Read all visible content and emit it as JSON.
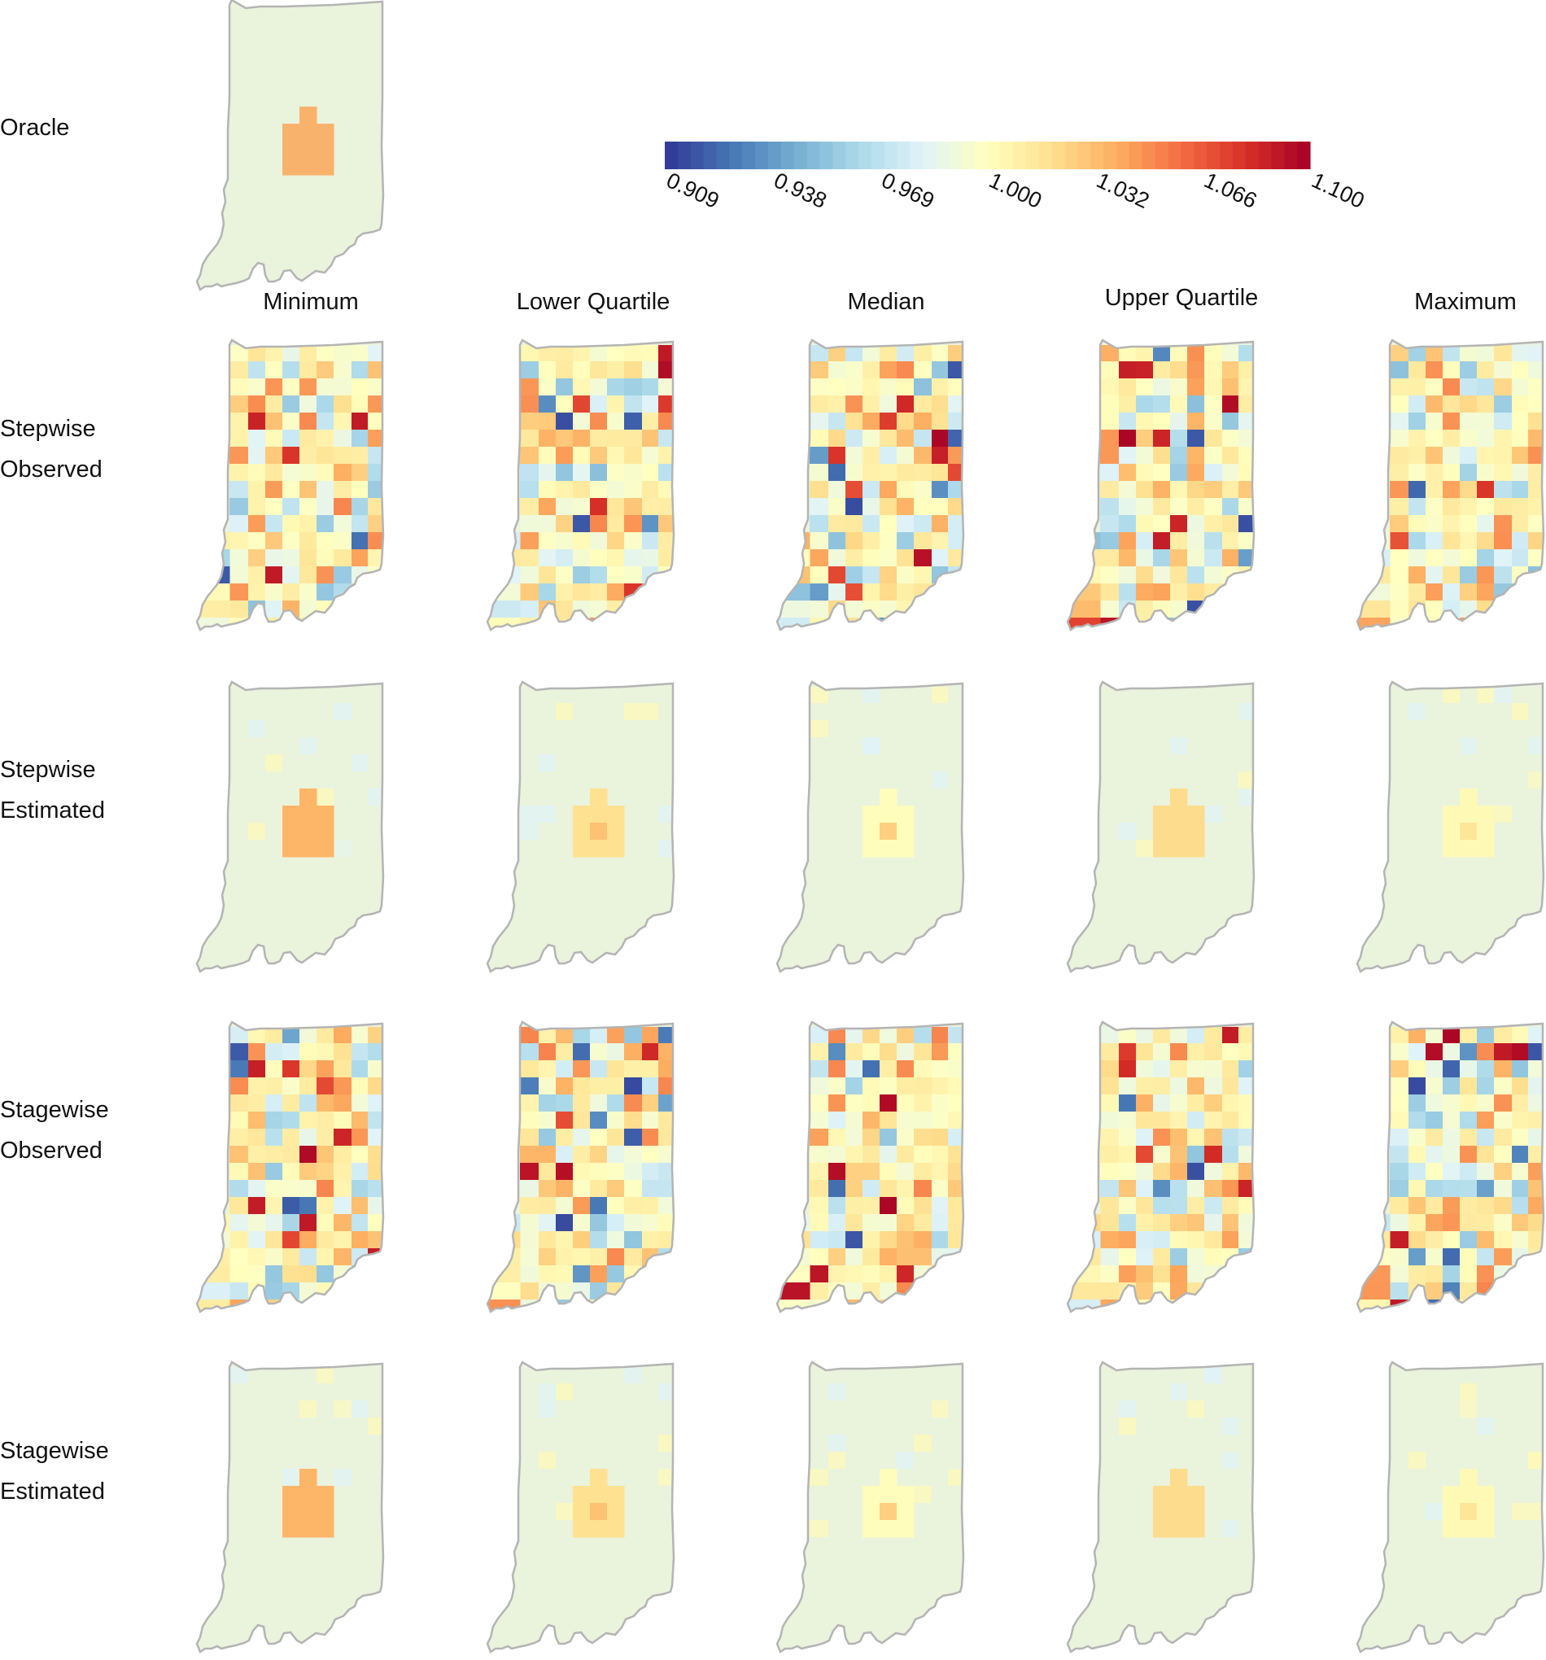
{
  "rows": [
    {
      "id": "oracle",
      "label_lines": [
        "Oracle"
      ]
    },
    {
      "id": "stepwise-observed",
      "label_lines": [
        "Stepwise",
        "Observed"
      ]
    },
    {
      "id": "stepwise-estimated",
      "label_lines": [
        "Stepwise",
        "Estimated"
      ]
    },
    {
      "id": "stagewise-observed",
      "label_lines": [
        "Stagewise",
        "Observed"
      ]
    },
    {
      "id": "stagewise-estimated",
      "label_lines": [
        "Stagewise",
        "Estimated"
      ]
    }
  ],
  "columns": [
    "Minimum",
    "Lower Quartile",
    "Median",
    "Upper Quartile",
    "Maximum"
  ],
  "legend": {
    "ticks": [
      "0.909",
      "0.938",
      "0.969",
      "1.000",
      "1.032",
      "1.066",
      "1.100"
    ],
    "min": 0.909,
    "max": 1.1,
    "colors": [
      "#313695",
      "#4575b4",
      "#74add1",
      "#abd9e9",
      "#e0f3f8",
      "#ffffbf",
      "#fee090",
      "#fdae61",
      "#f46d43",
      "#d73027",
      "#a50026"
    ]
  },
  "colors": {
    "border": "#b4b4b4",
    "background": "#eaf3dc",
    "central_block": "#f9b26c"
  }
}
